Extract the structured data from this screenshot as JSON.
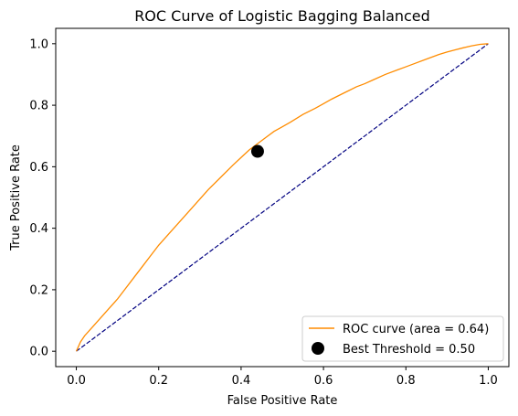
{
  "chart_data": {
    "type": "line",
    "title": "ROC Curve of Logistic Bagging Balanced",
    "xlabel": "False Positive Rate",
    "ylabel": "True Positive Rate",
    "xlim": [
      -0.05,
      1.05
    ],
    "ylim": [
      -0.05,
      1.05
    ],
    "x_ticks": [
      0.0,
      0.2,
      0.4,
      0.6,
      0.8,
      1.0
    ],
    "y_ticks": [
      0.0,
      0.2,
      0.4,
      0.6,
      0.8,
      1.0
    ],
    "x_tick_labels": [
      "0.0",
      "0.2",
      "0.4",
      "0.6",
      "0.8",
      "1.0"
    ],
    "y_tick_labels": [
      "0.0",
      "0.2",
      "0.4",
      "0.6",
      "0.8",
      "1.0"
    ],
    "grid": false,
    "legend_position": "lower-right",
    "series": [
      {
        "name": "ROC curve (area = 0.64)",
        "kind": "line",
        "color": "#ff8c00",
        "x": [
          0.0,
          0.01,
          0.02,
          0.04,
          0.06,
          0.08,
          0.1,
          0.12,
          0.14,
          0.16,
          0.18,
          0.2,
          0.22,
          0.25,
          0.28,
          0.3,
          0.32,
          0.35,
          0.38,
          0.4,
          0.42,
          0.44,
          0.46,
          0.48,
          0.5,
          0.52,
          0.55,
          0.58,
          0.6,
          0.62,
          0.65,
          0.68,
          0.7,
          0.72,
          0.75,
          0.78,
          0.8,
          0.82,
          0.85,
          0.88,
          0.9,
          0.92,
          0.94,
          0.96,
          0.98,
          1.0
        ],
        "y": [
          0.0,
          0.03,
          0.05,
          0.08,
          0.11,
          0.14,
          0.17,
          0.205,
          0.24,
          0.275,
          0.31,
          0.345,
          0.375,
          0.42,
          0.465,
          0.495,
          0.525,
          0.565,
          0.605,
          0.63,
          0.655,
          0.675,
          0.695,
          0.715,
          0.73,
          0.745,
          0.77,
          0.79,
          0.805,
          0.82,
          0.84,
          0.86,
          0.87,
          0.882,
          0.9,
          0.915,
          0.925,
          0.935,
          0.95,
          0.965,
          0.973,
          0.98,
          0.987,
          0.993,
          0.998,
          1.0
        ]
      },
      {
        "name": "",
        "kind": "diagonal",
        "color": "#000080",
        "x": [
          0.0,
          1.0
        ],
        "y": [
          0.0,
          1.0
        ]
      },
      {
        "name": "Best Threshold = 0.50",
        "kind": "point",
        "color": "#000000",
        "x": [
          0.44
        ],
        "y": [
          0.65
        ]
      }
    ]
  }
}
